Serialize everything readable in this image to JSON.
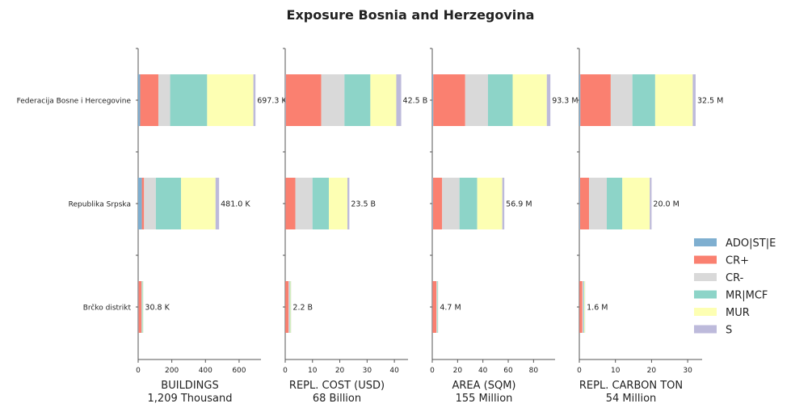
{
  "chart_data": {
    "type": "bar",
    "orientation": "horizontal",
    "stacked": true,
    "title": "Exposure Bosnia and Herzegovina",
    "categories": [
      "Federacija Bosne i Hercegovine",
      "Republika Srpska",
      "Brčko distrikt"
    ],
    "series_names": [
      "ADO|ST|E",
      "CR+",
      "CR-",
      "MR|MCF",
      "MUR",
      "S"
    ],
    "series_colors": [
      "#7fafd0",
      "#fa8070",
      "#d9d9d9",
      "#8dd4c8",
      "#fdffb3",
      "#bdbadb"
    ],
    "legend_position": "right",
    "grid": false,
    "panels": [
      {
        "id": "buildings",
        "xlabel": "BUILDINGS",
        "xsub": "1,209 Thousand",
        "xlim": [
          0,
          730
        ],
        "ticks": [
          0,
          200,
          400,
          600
        ],
        "tick_labels": [
          "0",
          "200",
          "400",
          "600"
        ],
        "values": [
          [
            12,
            108,
            70,
            220,
            275,
            12.3
          ],
          [
            22,
            13,
            70,
            150,
            205,
            21
          ],
          [
            2,
            18,
            2,
            5,
            3,
            0.8
          ]
        ],
        "totals": [
          "697.3 K",
          "481.0 K",
          "30.8 K"
        ]
      },
      {
        "id": "repl_cost",
        "xlabel": "REPL. COST (USD)",
        "xsub": "68 Billion",
        "xlim": [
          0,
          45
        ],
        "ticks": [
          0,
          10,
          20,
          30,
          40
        ],
        "tick_labels": [
          "0",
          "10",
          "20",
          "30",
          "40"
        ],
        "values": [
          [
            0.2,
            13.0,
            8.5,
            9.5,
            9.5,
            1.8
          ],
          [
            0.1,
            3.6,
            6.3,
            6.0,
            6.8,
            0.7
          ],
          [
            0.05,
            1.2,
            0.4,
            0.25,
            0.25,
            0.05
          ]
        ],
        "totals": [
          "42.5 B",
          "23.5 B",
          "2.2 B"
        ]
      },
      {
        "id": "area",
        "xlabel": "AREA (SQM)",
        "xsub": "155 Million",
        "xlim": [
          0,
          97
        ],
        "ticks": [
          0,
          20,
          40,
          60,
          80
        ],
        "tick_labels": [
          "0",
          "20",
          "40",
          "60",
          "80"
        ],
        "values": [
          [
            0.8,
            25.2,
            18.0,
            19.5,
            27.0,
            2.8
          ],
          [
            0.5,
            7.3,
            13.7,
            14.0,
            19.8,
            1.6
          ],
          [
            0.2,
            3.0,
            0.7,
            0.5,
            0.2,
            0.1
          ]
        ],
        "totals": [
          "93.3 M",
          "56.9 M",
          "4.7 M"
        ]
      },
      {
        "id": "carbon",
        "xlabel": "REPL. CARBON TON",
        "xsub": "54 Million",
        "xlim": [
          0,
          34
        ],
        "ticks": [
          0,
          10,
          20,
          30
        ],
        "tick_labels": [
          "0",
          "10",
          "20",
          "30"
        ],
        "values": [
          [
            0.3,
            8.4,
            6.0,
            6.3,
            10.4,
            0.8
          ],
          [
            0.2,
            2.5,
            4.9,
            4.3,
            7.6,
            0.5
          ],
          [
            0.05,
            0.8,
            0.3,
            0.2,
            0.2,
            0.05
          ]
        ],
        "totals": [
          "32.5 M",
          "20.0 M",
          "1.6 M"
        ]
      }
    ]
  }
}
